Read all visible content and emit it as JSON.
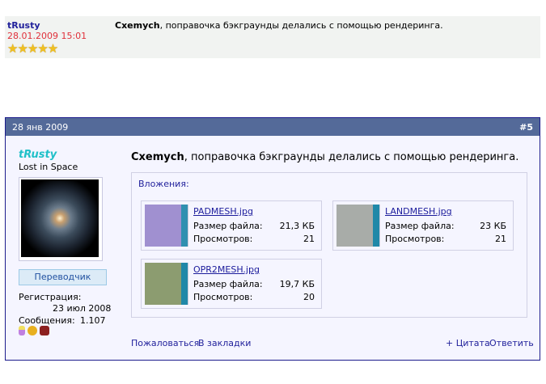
{
  "quote": {
    "user": "tRusty",
    "date": "28.01.2009 15:01",
    "stars": "★★★★★",
    "rating": 5,
    "author": "Cxemych",
    "text": ", поправочка бэкграунды делались с помощью рендеринга."
  },
  "post": {
    "date": "28 янв 2009",
    "number": "#5",
    "header_color": "#546a99",
    "user": {
      "name": "tRusty",
      "title": "Lost in Space",
      "rank": "Переводчик",
      "reg_label": "Регистрация:",
      "reg_value": "23 июл 2008",
      "msgs_label": "Сообщения:",
      "msgs_value": "1.107"
    },
    "author": "Cxemych",
    "text": ", поправочка бэкграунды делались с помощью рендеринга.",
    "attachments_title": "Вложения:",
    "size_label": "Размер файла:",
    "views_label": "Просмотров:",
    "attachments": [
      {
        "name": "PADMESH.jpg",
        "size": "21,3 КБ",
        "views": "21"
      },
      {
        "name": "LANDMESH.jpg",
        "size": "23 КБ",
        "views": "21"
      },
      {
        "name": "OPR2MESH.jpg",
        "size": "19,7 КБ",
        "views": "20"
      }
    ],
    "actions": {
      "report": "Пожаловаться",
      "bookmark": "В закладки",
      "quote": "+ Цитата",
      "reply": "Ответить"
    }
  }
}
